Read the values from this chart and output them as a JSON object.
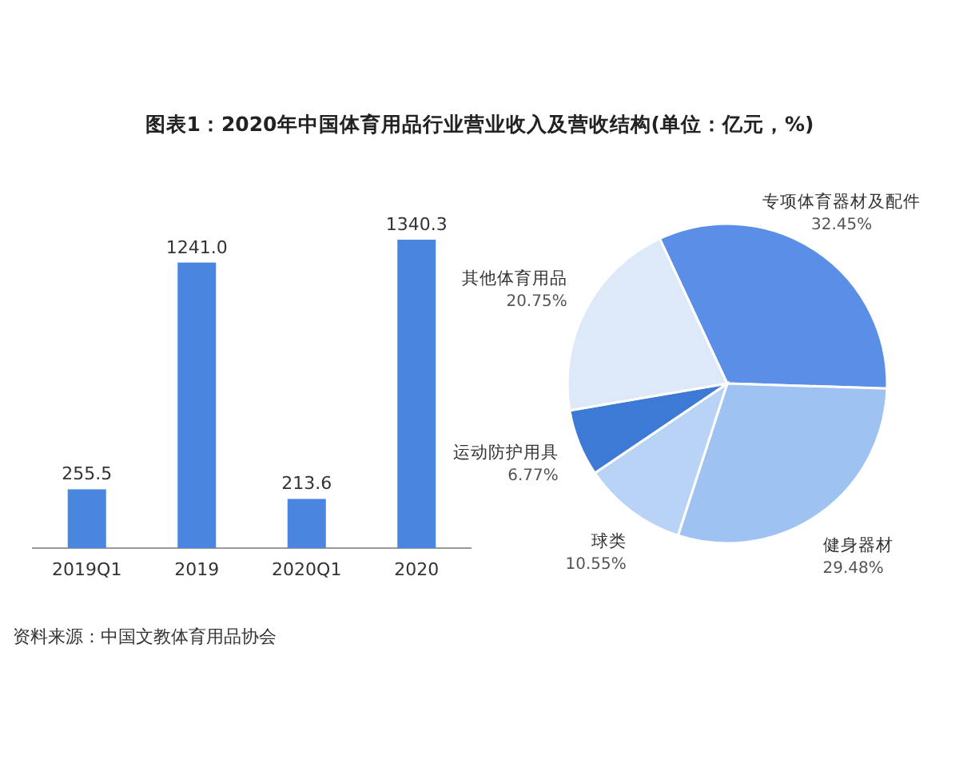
{
  "chart_data": [
    {
      "type": "bar",
      "title": "图表1：2020年中国体育用品行业营业收入及营收结构(单位：亿元，%)",
      "categories": [
        "2019Q1",
        "2019",
        "2020Q1",
        "2020"
      ],
      "values": [
        255.5,
        1241.0,
        213.6,
        1340.3
      ],
      "value_labels": [
        "255.5",
        "1241.0",
        "213.6",
        "1340.3"
      ],
      "color": "#4a86e0",
      "annotations": [
        "资料来源：中国文教体育用品协会"
      ]
    },
    {
      "type": "pie",
      "categories": [
        "专项体育器材及配件",
        "健身器材",
        "球类",
        "运动防护用具",
        "其他体育用品"
      ],
      "values": [
        32.45,
        29.48,
        10.55,
        6.77,
        20.75
      ],
      "value_labels": [
        "32.45%",
        "29.48%",
        "10.55%",
        "6.77%",
        "20.75%"
      ],
      "colors": [
        "#5b8ee6",
        "#9ec2f2",
        "#b8d3f5",
        "#3d7ad6",
        "#dde9f8"
      ]
    }
  ]
}
